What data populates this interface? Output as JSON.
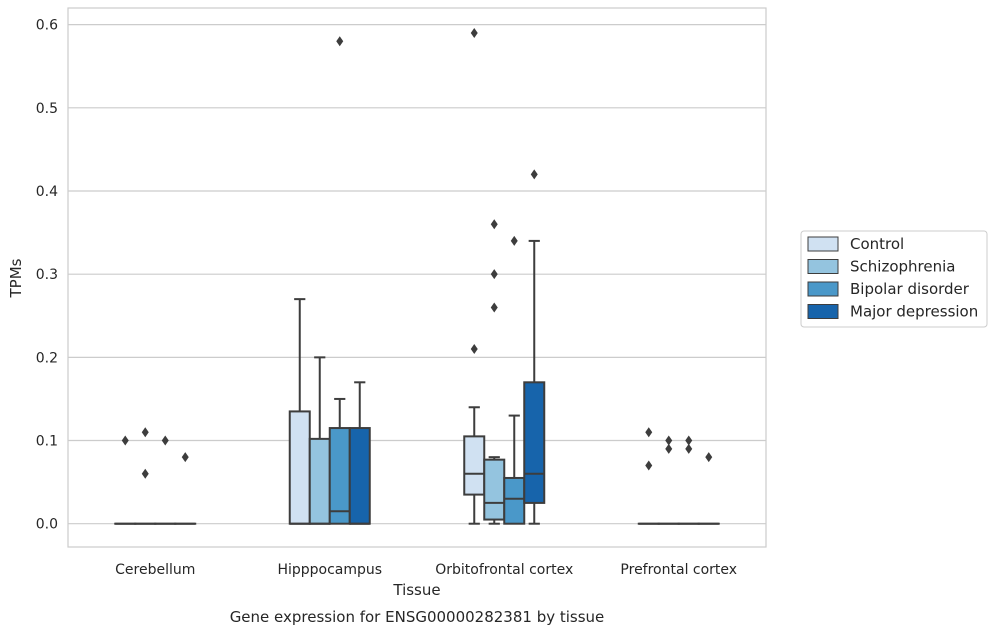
{
  "chart_data": {
    "type": "box",
    "title": "",
    "caption": "Gene expression for ENSG00000282381 by tissue",
    "xlabel": "Tissue",
    "ylabel": "TPMs",
    "ylim": [
      -0.028,
      0.62
    ],
    "yticks": [
      0.0,
      0.1,
      0.2,
      0.3,
      0.4,
      0.5,
      0.6
    ],
    "ytick_labels": [
      "0.0",
      "0.1",
      "0.2",
      "0.3",
      "0.4",
      "0.5",
      "0.6"
    ],
    "grid": "horizontal",
    "legend_position": "right",
    "categories": [
      "Cerebellum",
      "Hipppocampus",
      "Orbitofrontal cortex",
      "Prefrontal cortex"
    ],
    "series": [
      {
        "name": "Control",
        "color": "#d0e1f2",
        "boxes": [
          {
            "q1": 0.0,
            "median": 0.0,
            "q3": 0.0,
            "whisker_low": 0.0,
            "whisker_high": 0.0,
            "outliers": [
              0.1
            ]
          },
          {
            "q1": 0.0,
            "median": 0.0,
            "q3": 0.135,
            "whisker_low": 0.0,
            "whisker_high": 0.27,
            "outliers": []
          },
          {
            "q1": 0.035,
            "median": 0.06,
            "q3": 0.105,
            "whisker_low": 0.0,
            "whisker_high": 0.14,
            "outliers": [
              0.21,
              0.59
            ]
          },
          {
            "q1": 0.0,
            "median": 0.0,
            "q3": 0.0,
            "whisker_low": 0.0,
            "whisker_high": 0.0,
            "outliers": [
              0.07,
              0.11
            ]
          }
        ]
      },
      {
        "name": "Schizophrenia",
        "color": "#94c4df",
        "boxes": [
          {
            "q1": 0.0,
            "median": 0.0,
            "q3": 0.0,
            "whisker_low": 0.0,
            "whisker_high": 0.0,
            "outliers": [
              0.06,
              0.11
            ]
          },
          {
            "q1": 0.0,
            "median": 0.0,
            "q3": 0.102,
            "whisker_low": 0.0,
            "whisker_high": 0.2,
            "outliers": []
          },
          {
            "q1": 0.005,
            "median": 0.025,
            "q3": 0.077,
            "whisker_low": 0.0,
            "whisker_high": 0.08,
            "outliers": [
              0.26,
              0.3,
              0.36
            ]
          },
          {
            "q1": 0.0,
            "median": 0.0,
            "q3": 0.0,
            "whisker_low": 0.0,
            "whisker_high": 0.0,
            "outliers": [
              0.09,
              0.1
            ]
          }
        ]
      },
      {
        "name": "Bipolar disorder",
        "color": "#4a98c9",
        "boxes": [
          {
            "q1": 0.0,
            "median": 0.0,
            "q3": 0.0,
            "whisker_low": 0.0,
            "whisker_high": 0.0,
            "outliers": [
              0.1
            ]
          },
          {
            "q1": 0.0,
            "median": 0.015,
            "q3": 0.115,
            "whisker_low": 0.0,
            "whisker_high": 0.15,
            "outliers": [
              0.58
            ]
          },
          {
            "q1": 0.0,
            "median": 0.03,
            "q3": 0.055,
            "whisker_low": 0.0,
            "whisker_high": 0.13,
            "outliers": [
              0.34
            ]
          },
          {
            "q1": 0.0,
            "median": 0.0,
            "q3": 0.0,
            "whisker_low": 0.0,
            "whisker_high": 0.0,
            "outliers": [
              0.09,
              0.1
            ]
          }
        ]
      },
      {
        "name": "Major depression",
        "color": "#1764ab",
        "boxes": [
          {
            "q1": 0.0,
            "median": 0.0,
            "q3": 0.0,
            "whisker_low": 0.0,
            "whisker_high": 0.0,
            "outliers": [
              0.08
            ]
          },
          {
            "q1": 0.0,
            "median": 0.0,
            "q3": 0.115,
            "whisker_low": 0.0,
            "whisker_high": 0.17,
            "outliers": []
          },
          {
            "q1": 0.025,
            "median": 0.06,
            "q3": 0.17,
            "whisker_low": 0.0,
            "whisker_high": 0.34,
            "outliers": [
              0.42
            ]
          },
          {
            "q1": 0.0,
            "median": 0.0,
            "q3": 0.0,
            "whisker_low": 0.0,
            "whisker_high": 0.0,
            "outliers": [
              0.08
            ]
          }
        ]
      }
    ]
  }
}
